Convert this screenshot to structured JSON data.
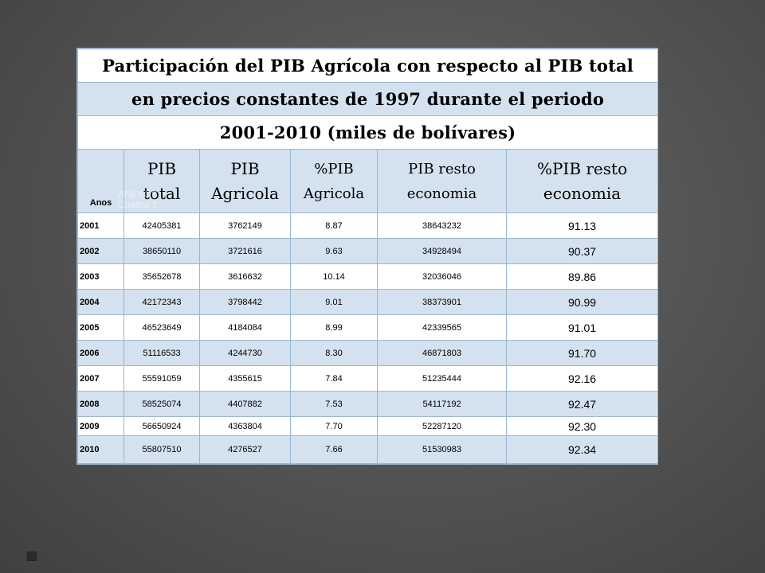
{
  "title": {
    "line1": "Participación del PIB Agrícola con respecto al PIB total",
    "line2": "en precios constantes de 1997 durante el periodo",
    "line3": "2001-2010 (miles de bolívares)"
  },
  "headers": {
    "year": "Anos",
    "pib_total_a": "PIB",
    "pib_total_b": "total",
    "pib_agricola_a": "PIB",
    "pib_agricola_b": "Agricola",
    "pct_agricola_a": "%PIB",
    "pct_agricola_b": "Agricola",
    "pib_resto_a": "PIB resto",
    "pib_resto_b": "economia",
    "pct_resto_a": "%PIB resto",
    "pct_resto_b": "economia"
  },
  "watermark": {
    "line1": "ANEXOS",
    "line2": "Cuadro 1"
  },
  "rows": [
    {
      "year": "2001",
      "pib_total": "42405381",
      "pib_agricola": "3762149",
      "pct_agricola": "8.87",
      "pib_resto": "38643232",
      "pct_resto": "91.13"
    },
    {
      "year": "2002",
      "pib_total": "38650110",
      "pib_agricola": "3721616",
      "pct_agricola": "9.63",
      "pib_resto": "34928494",
      "pct_resto": "90.37"
    },
    {
      "year": "2003",
      "pib_total": "35652678",
      "pib_agricola": "3616632",
      "pct_agricola": "10.14",
      "pib_resto": "32036046",
      "pct_resto": "89.86"
    },
    {
      "year": "2004",
      "pib_total": "42172343",
      "pib_agricola": "3798442",
      "pct_agricola": "9.01",
      "pib_resto": "38373901",
      "pct_resto": "90.99"
    },
    {
      "year": "2005",
      "pib_total": "46523649",
      "pib_agricola": "4184084",
      "pct_agricola": "8.99",
      "pib_resto": "42339565",
      "pct_resto": "91.01"
    },
    {
      "year": "2006",
      "pib_total": "51116533",
      "pib_agricola": "4244730",
      "pct_agricola": "8.30",
      "pib_resto": "46871803",
      "pct_resto": "91.70"
    },
    {
      "year": "2007",
      "pib_total": "55591059",
      "pib_agricola": "4355615",
      "pct_agricola": "7.84",
      "pib_resto": "51235444",
      "pct_resto": "92.16"
    },
    {
      "year": "2008",
      "pib_total": "58525074",
      "pib_agricola": "4407882",
      "pct_agricola": "7.53",
      "pib_resto": "54117192",
      "pct_resto": "92.47"
    },
    {
      "year": "2009",
      "pib_total": "56650924",
      "pib_agricola": "4363804",
      "pct_agricola": "7.70",
      "pib_resto": "52287120",
      "pct_resto": "92.30"
    },
    {
      "year": "2010",
      "pib_total": "55807510",
      "pib_agricola": "4276527",
      "pct_agricola": "7.66",
      "pib_resto": "51530983",
      "pct_resto": "92.34"
    }
  ]
}
